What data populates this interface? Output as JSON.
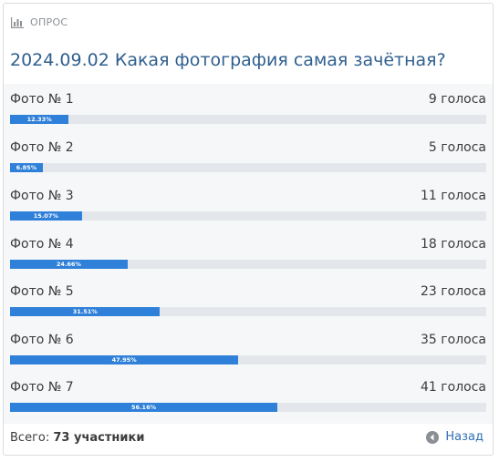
{
  "header": {
    "label": "ОПРОС",
    "icon": "bar-chart-icon"
  },
  "poll": {
    "title": "2024.09.02 Какая фотография самая зачётная?",
    "options": [
      {
        "label": "Фото № 1",
        "votes": "9 голоса",
        "percent_label": "12.33%",
        "fraction": 0.1233
      },
      {
        "label": "Фото № 2",
        "votes": "5 голоса",
        "percent_label": "6.85%",
        "fraction": 0.0685
      },
      {
        "label": "Фото № 3",
        "votes": "11 голоса",
        "percent_label": "15.07%",
        "fraction": 0.1507
      },
      {
        "label": "Фото № 4",
        "votes": "18 голоса",
        "percent_label": "24.66%",
        "fraction": 0.2466
      },
      {
        "label": "Фото № 5",
        "votes": "23 голоса",
        "percent_label": "31.51%",
        "fraction": 0.3151
      },
      {
        "label": "Фото № 6",
        "votes": "35 голоса",
        "percent_label": "47.95%",
        "fraction": 0.4795
      },
      {
        "label": "Фото № 7",
        "votes": "41 голоса",
        "percent_label": "56.16%",
        "fraction": 0.5616
      }
    ]
  },
  "footer": {
    "total_label": "Всего:",
    "total_value": "73 участники",
    "back_label": "Назад",
    "back_icon": "back-arrow-icon"
  },
  "colors": {
    "accent": "#2f80d9",
    "title": "#2f5f8f",
    "track": "#e3e6ea"
  }
}
